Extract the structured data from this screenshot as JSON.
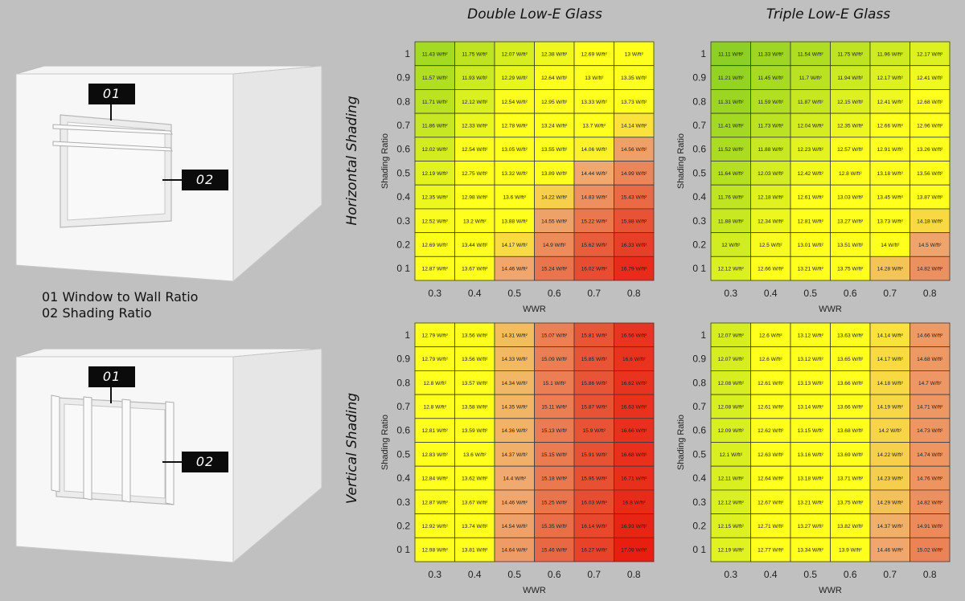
{
  "column_titles": [
    "Double Low-E Glass",
    "Triple Low-E Glass"
  ],
  "row_titles": [
    "Horizontal Shading",
    "Vertical Shading"
  ],
  "legend": {
    "line1": "01 Window to Wall Ratio",
    "line2": "02 Shading Ratio"
  },
  "callouts": [
    "01",
    "02"
  ],
  "colors": {
    "background": "#c0c0c0",
    "low": "#8ccf24",
    "mid": "#ffff1e",
    "high": "#e81e10"
  },
  "chart_data": [
    {
      "type": "heatmap",
      "title": "Double Low-E Glass",
      "shading": "Horizontal Shading",
      "xlabel": "WWR",
      "ylabel": "Shading Ratio",
      "x": [
        "0.3",
        "0.4",
        "0.5",
        "0.6",
        "0.7",
        "0.8"
      ],
      "y": [
        "1",
        "0.9",
        "0.8",
        "0.7",
        "0.6",
        "0.5",
        "0.4",
        "0.3",
        "0.2",
        "0 1"
      ],
      "unit": "W/ft²",
      "values": [
        [
          11.43,
          11.75,
          12.07,
          12.38,
          12.69,
          13
        ],
        [
          11.57,
          11.93,
          12.29,
          12.64,
          13,
          13.35
        ],
        [
          11.71,
          12.12,
          12.54,
          12.95,
          13.33,
          13.73
        ],
        [
          11.86,
          12.33,
          12.78,
          13.24,
          13.7,
          14.14
        ],
        [
          12.02,
          12.54,
          13.05,
          13.55,
          14.06,
          14.56
        ],
        [
          12.19,
          12.75,
          13.32,
          13.89,
          14.44,
          14.99
        ],
        [
          12.35,
          12.98,
          13.6,
          14.22,
          14.83,
          15.43
        ],
        [
          12.52,
          13.2,
          13.88,
          14.55,
          15.22,
          15.88
        ],
        [
          12.69,
          13.44,
          14.17,
          14.9,
          15.62,
          16.33
        ],
        [
          12.87,
          13.67,
          14.46,
          15.24,
          16.02,
          16.79
        ]
      ]
    },
    {
      "type": "heatmap",
      "title": "Triple Low-E Glass",
      "shading": "Horizontal Shading",
      "xlabel": "WWR",
      "ylabel": "Shading Ratio",
      "x": [
        "0.3",
        "0.4",
        "0.5",
        "0.6",
        "0.7",
        "0.8"
      ],
      "y": [
        "1",
        "0.9",
        "0.8",
        "0.7",
        "0.6",
        "0.5",
        "0.4",
        "0.3",
        "0.2",
        "0 1"
      ],
      "unit": "W/ft²",
      "values": [
        [
          11.11,
          11.33,
          11.54,
          11.75,
          11.96,
          12.17
        ],
        [
          11.21,
          11.45,
          11.7,
          11.94,
          12.17,
          12.41
        ],
        [
          11.31,
          11.59,
          11.87,
          12.15,
          12.41,
          12.68
        ],
        [
          11.41,
          11.73,
          12.04,
          12.35,
          12.66,
          12.96
        ],
        [
          11.52,
          11.88,
          12.23,
          12.57,
          12.91,
          13.26
        ],
        [
          11.64,
          12.03,
          12.42,
          12.8,
          13.18,
          13.56
        ],
        [
          11.76,
          12.18,
          12.61,
          13.03,
          13.45,
          13.87
        ],
        [
          11.88,
          12.34,
          12.81,
          13.27,
          13.73,
          14.18
        ],
        [
          12,
          12.5,
          13.01,
          13.51,
          14,
          14.5
        ],
        [
          12.12,
          12.66,
          13.21,
          13.75,
          14.28,
          14.82
        ]
      ]
    },
    {
      "type": "heatmap",
      "title": "Double Low-E Glass",
      "shading": "Vertical Shading",
      "xlabel": "WWR",
      "ylabel": "Shading Ratio",
      "x": [
        "0.3",
        "0.4",
        "0.5",
        "0.6",
        "0.7",
        "0.8"
      ],
      "y": [
        "1",
        "0.9",
        "0.8",
        "0.7",
        "0.6",
        "0.5",
        "0.4",
        "0.3",
        "0.2",
        "0 1"
      ],
      "unit": "W/ft²",
      "values": [
        [
          12.79,
          13.56,
          14.31,
          15.07,
          15.81,
          16.56
        ],
        [
          12.79,
          13.56,
          14.33,
          15.09,
          15.85,
          16.6
        ],
        [
          12.8,
          13.57,
          14.34,
          15.1,
          15.86,
          16.62
        ],
        [
          12.8,
          13.58,
          14.35,
          15.11,
          15.87,
          16.63
        ],
        [
          12.81,
          13.59,
          14.36,
          15.13,
          15.9,
          16.66
        ],
        [
          12.83,
          13.6,
          14.37,
          15.15,
          15.91,
          16.68
        ],
        [
          12.84,
          13.62,
          14.4,
          15.18,
          15.95,
          16.71
        ],
        [
          12.87,
          13.67,
          14.46,
          15.25,
          16.03,
          16.8
        ],
        [
          12.92,
          13.74,
          14.54,
          15.35,
          16.14,
          16.93
        ],
        [
          12.98,
          13.81,
          14.64,
          15.46,
          16.27,
          17.09
        ]
      ]
    },
    {
      "type": "heatmap",
      "title": "Triple Low-E Glass",
      "shading": "Vertical Shading",
      "xlabel": "WWR",
      "ylabel": "Shading Ratio",
      "x": [
        "0.3",
        "0.4",
        "0.5",
        "0.6",
        "0.7",
        "0.8"
      ],
      "y": [
        "1",
        "0.9",
        "0.8",
        "0.7",
        "0.6",
        "0.5",
        "0.4",
        "0.3",
        "0.2",
        "0 1"
      ],
      "unit": "W/ft²",
      "values": [
        [
          12.07,
          12.6,
          13.12,
          13.63,
          14.14,
          14.66
        ],
        [
          12.07,
          12.6,
          13.12,
          13.65,
          14.17,
          14.68
        ],
        [
          12.08,
          12.61,
          13.13,
          13.66,
          14.18,
          14.7
        ],
        [
          12.08,
          12.61,
          13.14,
          13.66,
          14.19,
          14.71
        ],
        [
          12.09,
          12.62,
          13.15,
          13.68,
          14.2,
          14.73
        ],
        [
          12.1,
          12.63,
          13.16,
          13.69,
          14.22,
          14.74
        ],
        [
          12.11,
          12.64,
          13.18,
          13.71,
          14.23,
          14.76
        ],
        [
          12.12,
          12.67,
          13.21,
          13.75,
          14.29,
          14.82
        ],
        [
          12.15,
          12.71,
          13.27,
          13.82,
          14.37,
          14.91
        ],
        [
          12.19,
          12.77,
          13.34,
          13.9,
          14.46,
          15.02
        ]
      ]
    }
  ]
}
